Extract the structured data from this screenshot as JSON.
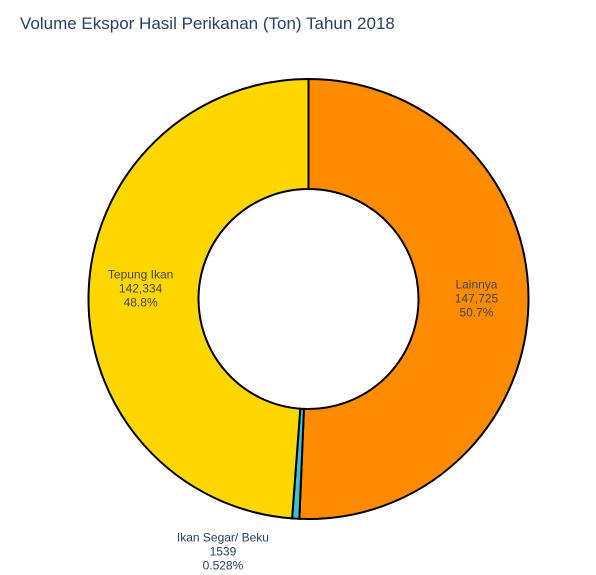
{
  "chart_data": {
    "type": "pie",
    "hole": true,
    "title": "Volume Ekspor Hasil Perikanan (Ton) Tahun 2018",
    "direction": "clockwise",
    "slices": [
      {
        "label": "Lainnya",
        "value": 147725,
        "value_text": "147,725",
        "percent_text": "50.7%",
        "percent": 50.7,
        "color": "#ff8c00",
        "label_position": "inside"
      },
      {
        "label": "Ikan Segar/ Beku",
        "value": 1539,
        "value_text": "1539",
        "percent_text": "0.528%",
        "percent": 0.528,
        "color": "#3ec1d3",
        "label_position": "outside"
      },
      {
        "label": "Tepung Ikan",
        "value": 142334,
        "value_text": "142,334",
        "percent_text": "48.8%",
        "percent": 48.8,
        "color": "#ffd700",
        "label_position": "inside"
      }
    ],
    "outline_color": "#000000",
    "legend": false
  }
}
